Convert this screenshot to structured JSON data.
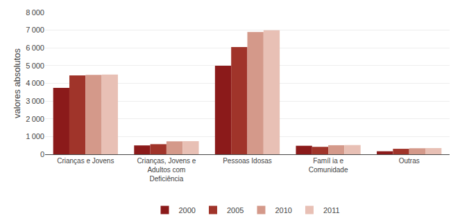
{
  "chart_data": {
    "type": "bar",
    "categories": [
      "Crianças e Jovens",
      "Crianças, Jovens e\nAdultos com\nDeficiência",
      "Pessoas Idosas",
      "Famíl ia e\nComunidade",
      "Outras"
    ],
    "series": [
      {
        "name": "2000",
        "color": "#8B1A1A",
        "values": [
          3750,
          500,
          5000,
          480,
          170
        ]
      },
      {
        "name": "2005",
        "color": "#A0342A",
        "values": [
          4450,
          570,
          6050,
          420,
          310
        ]
      },
      {
        "name": "2010",
        "color": "#D4998A",
        "values": [
          4480,
          730,
          6900,
          510,
          340
        ]
      },
      {
        "name": "2011",
        "color": "#E8C0B5",
        "values": [
          4500,
          740,
          7000,
          520,
          350
        ]
      }
    ],
    "ylabel": "valores absolutos",
    "ylim": [
      0,
      8000
    ],
    "yticks": [
      0,
      {
        "value": 1000,
        "label": "1 000"
      },
      {
        "value": 2000,
        "label": "2 000"
      },
      {
        "value": 3000,
        "label": "3 000"
      },
      {
        "value": 4000,
        "label": "4 000"
      },
      {
        "value": 5000,
        "label": "5 000"
      },
      {
        "value": 6000,
        "label": "6 000"
      },
      {
        "value": 7000,
        "label": "7 000"
      },
      {
        "value": 8000,
        "label": "8 000"
      }
    ],
    "grid": true,
    "legend": "bottom"
  }
}
